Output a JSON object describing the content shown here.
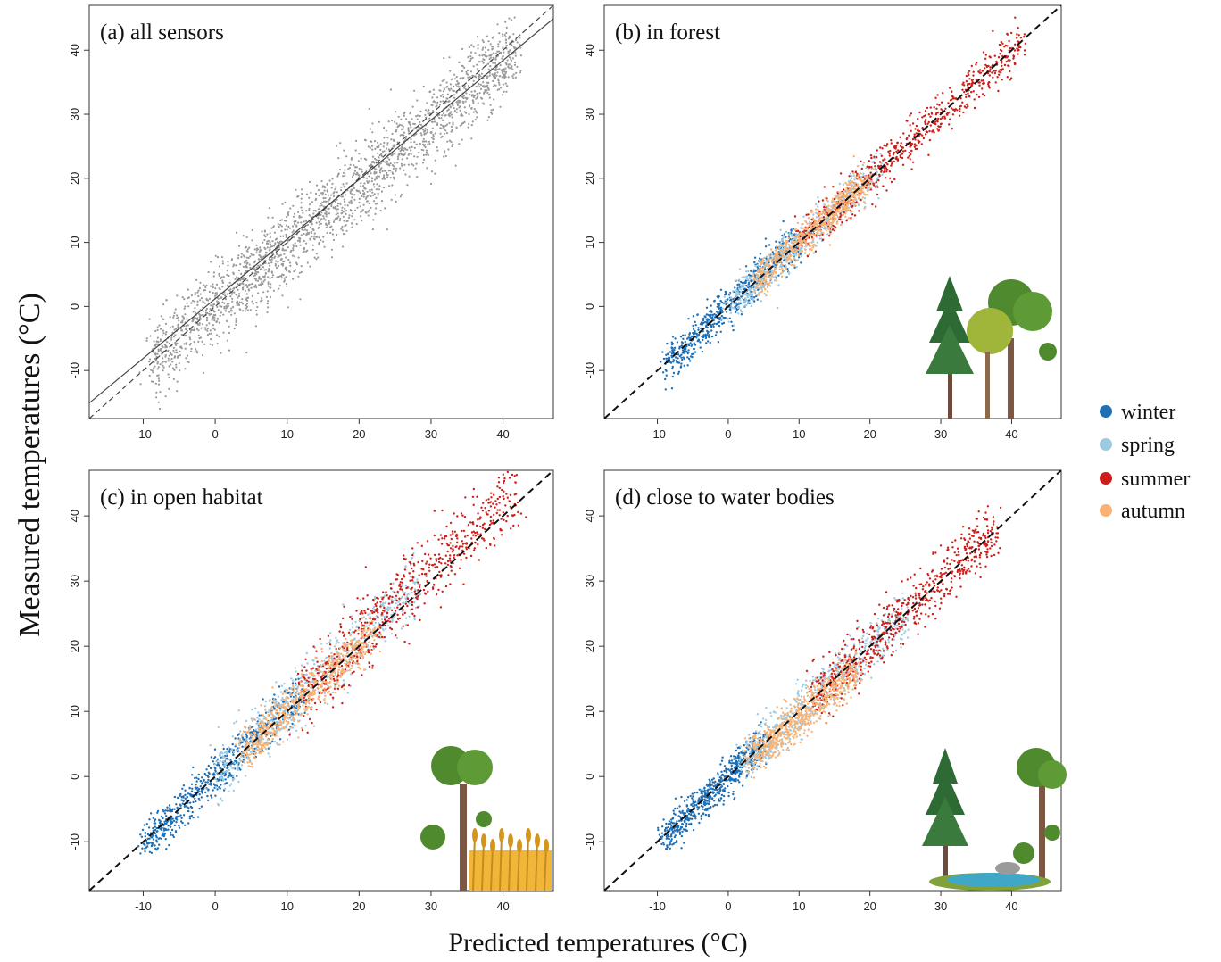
{
  "figure": {
    "ylabel": "Measured temperatures (°C)",
    "xlabel": "Predicted temperatures (°C)"
  },
  "legend": {
    "items": [
      {
        "label": "winter",
        "color": "#1f6fb5"
      },
      {
        "label": "spring",
        "color": "#9ecae1"
      },
      {
        "label": "summer",
        "color": "#cc1f1a"
      },
      {
        "label": "autumn",
        "color": "#f9b274"
      }
    ]
  },
  "chart_data": [
    {
      "type": "scatter",
      "title": "(a) all sensors",
      "xticks": [
        -10,
        0,
        10,
        20,
        30,
        40
      ],
      "yticks": [
        -10,
        0,
        10,
        20,
        30,
        40
      ],
      "xlim": [
        -17.5,
        47
      ],
      "ylim": [
        -17.5,
        47
      ],
      "point_color": "#9a9a9a",
      "lines": [
        {
          "name": "1:1 line",
          "style": "dashed",
          "slope": 1,
          "intercept": 0
        },
        {
          "name": "regression",
          "style": "solid",
          "slope": 0.93,
          "intercept": 1.2
        }
      ],
      "series": [
        {
          "name": "all",
          "color": "#9a9a9a",
          "x_range": [
            -9,
            42
          ],
          "slope": 0.95,
          "spread": 6.0
        }
      ],
      "grid": false,
      "legend": "none",
      "icon": "none"
    },
    {
      "type": "scatter",
      "title": "(b) in forest",
      "xticks": [
        -10,
        0,
        10,
        20,
        30,
        40
      ],
      "yticks": [
        -10,
        0,
        10,
        20,
        30,
        40
      ],
      "xlim": [
        -17.5,
        47
      ],
      "ylim": [
        -17.5,
        47
      ],
      "lines": [
        {
          "name": "1:1 line",
          "style": "dashed",
          "slope": 1,
          "intercept": 0
        }
      ],
      "series": [
        {
          "name": "winter",
          "color": "#1f6fb5",
          "x_range": [
            -9,
            10
          ],
          "slope": 1.05,
          "spread": 2.8
        },
        {
          "name": "spring",
          "color": "#9ecae1",
          "x_range": [
            0,
            22
          ],
          "slope": 1.0,
          "spread": 2.8
        },
        {
          "name": "summer",
          "color": "#cc1f1a",
          "x_range": [
            10,
            42
          ],
          "slope": 1.0,
          "spread": 3.2
        },
        {
          "name": "autumn",
          "color": "#f9b274",
          "x_range": [
            4,
            20
          ],
          "slope": 1.0,
          "spread": 2.4
        }
      ],
      "grid": false,
      "legend": "right",
      "icon": "forest-icon"
    },
    {
      "type": "scatter",
      "title": "(c) in open habitat",
      "xticks": [
        -10,
        0,
        10,
        20,
        30,
        40
      ],
      "yticks": [
        -10,
        0,
        10,
        20,
        30,
        40
      ],
      "xlim": [
        -17.5,
        47
      ],
      "ylim": [
        -17.5,
        47
      ],
      "lines": [
        {
          "name": "1:1 line",
          "style": "dashed",
          "slope": 1,
          "intercept": 0
        }
      ],
      "series": [
        {
          "name": "winter",
          "color": "#1f6fb5",
          "x_range": [
            -10,
            12
          ],
          "slope": 1.05,
          "spread": 3.0
        },
        {
          "name": "spring",
          "color": "#9ecae1",
          "x_range": [
            0,
            28
          ],
          "slope": 1.05,
          "spread": 4.5
        },
        {
          "name": "summer",
          "color": "#cc1f1a",
          "x_range": [
            12,
            42
          ],
          "slope": 1.05,
          "spread": 5.5
        },
        {
          "name": "autumn",
          "color": "#f9b274",
          "x_range": [
            4,
            22
          ],
          "slope": 1.0,
          "spread": 3.0
        }
      ],
      "grid": false,
      "legend": "right",
      "icon": "open-habitat-icon"
    },
    {
      "type": "scatter",
      "title": "(d) close to water bodies",
      "xticks": [
        -10,
        0,
        10,
        20,
        30,
        40
      ],
      "yticks": [
        -10,
        0,
        10,
        20,
        30,
        40
      ],
      "xlim": [
        -17.5,
        47
      ],
      "ylim": [
        -17.5,
        47
      ],
      "lines": [
        {
          "name": "1:1 line",
          "style": "dashed",
          "slope": 1,
          "intercept": 0
        }
      ],
      "series": [
        {
          "name": "winter",
          "color": "#1f6fb5",
          "x_range": [
            -9,
            5
          ],
          "slope": 1.05,
          "spread": 2.5
        },
        {
          "name": "spring",
          "color": "#9ecae1",
          "x_range": [
            2,
            25
          ],
          "slope": 1.0,
          "spread": 3.5
        },
        {
          "name": "summer",
          "color": "#cc1f1a",
          "x_range": [
            12,
            38
          ],
          "slope": 1.0,
          "spread": 4.0
        },
        {
          "name": "autumn",
          "color": "#f9b274",
          "x_range": [
            3,
            18
          ],
          "slope": 0.9,
          "spread": 3.2
        }
      ],
      "grid": false,
      "legend": "right",
      "icon": "water-body-icon"
    }
  ]
}
